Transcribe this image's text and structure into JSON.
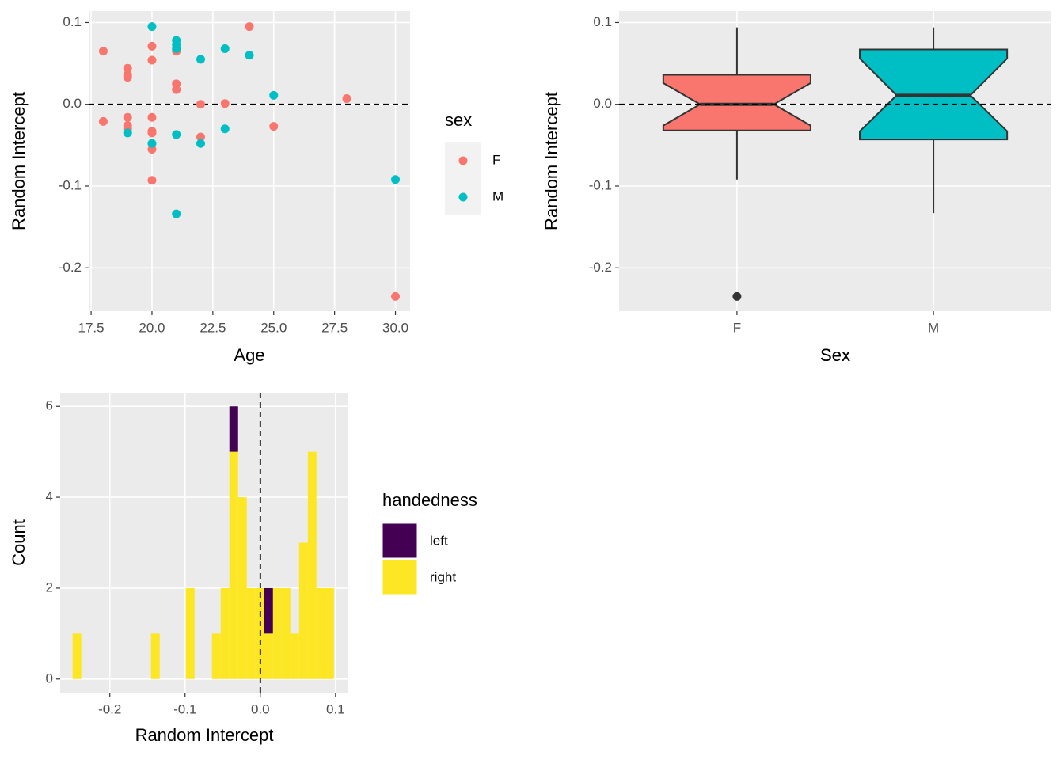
{
  "chart_data": [
    {
      "type": "scatter",
      "xlabel": "Age",
      "ylabel": "Random Intercept",
      "legend_title": "sex",
      "xlim": [
        17.4,
        30.6
      ],
      "ylim": [
        -0.253,
        0.114
      ],
      "xticks": [
        17.5,
        {
          "value": 20,
          "label": "20.0"
        },
        22.5,
        {
          "value": 25,
          "label": "25.0"
        },
        27.5,
        {
          "value": 30,
          "label": "30.0"
        }
      ],
      "yticks": [
        -0.2,
        -0.1,
        {
          "value": 0,
          "label": "0.0"
        },
        0.1
      ],
      "hline": 0,
      "grid": true,
      "series": [
        {
          "name": "F",
          "color": "#F8766D",
          "x": [
            18,
            18,
            19,
            19,
            19,
            19,
            19,
            19,
            20,
            20,
            20,
            20,
            20,
            20,
            20,
            21,
            21,
            21,
            22,
            22,
            23,
            24,
            25,
            28,
            30
          ],
          "values": [
            0.065,
            -0.021,
            0.044,
            0.036,
            0.033,
            -0.016,
            -0.026,
            -0.03,
            0.071,
            0.054,
            -0.016,
            -0.033,
            -0.035,
            -0.055,
            -0.093,
            0.065,
            0.025,
            0.018,
            0.0,
            -0.04,
            0.001,
            0.095,
            -0.027,
            0.007,
            -0.235
          ]
        },
        {
          "name": "M",
          "color": "#00BFC4",
          "x": [
            19,
            20,
            20,
            21,
            21,
            21,
            21,
            21,
            22,
            22,
            23,
            23,
            24,
            25,
            30
          ],
          "values": [
            -0.035,
            0.095,
            -0.048,
            0.078,
            0.073,
            0.068,
            -0.037,
            -0.134,
            0.055,
            -0.048,
            0.068,
            -0.03,
            0.06,
            0.011,
            -0.092
          ]
        }
      ]
    },
    {
      "type": "box",
      "xlabel": "Sex",
      "ylabel": "Random Intercept",
      "ylim": [
        -0.253,
        0.114
      ],
      "yticks": [
        -0.2,
        -0.1,
        {
          "value": 0,
          "label": "0.0"
        },
        0.1
      ],
      "hline": 0,
      "grid": true,
      "boxes": [
        {
          "name": "F",
          "color": "#F8766D",
          "low": -0.092,
          "q1": -0.032,
          "median": 0.0,
          "q3": 0.036,
          "high": 0.094,
          "notch_low": -0.026,
          "notch_high": 0.026,
          "outliers": [
            -0.235
          ]
        },
        {
          "name": "M",
          "color": "#00BFC4",
          "low": -0.133,
          "q1": -0.043,
          "median": 0.011,
          "q3": 0.067,
          "high": 0.094,
          "notch_low": -0.033,
          "notch_high": 0.056,
          "outliers": []
        }
      ]
    },
    {
      "type": "histogram",
      "xlabel": "Random Intercept",
      "ylabel": "Count",
      "legend_title": "handedness",
      "xlim": [
        -0.266,
        0.117
      ],
      "ylim": [
        -0.3,
        6.3
      ],
      "xticks": [
        -0.2,
        -0.1,
        {
          "value": 0,
          "label": "0.0"
        },
        0.1
      ],
      "yticks": [
        0,
        2,
        4,
        6
      ],
      "vline": 0,
      "grid": true,
      "bins": [
        -0.2495,
        -0.2379,
        -0.2263,
        -0.2148,
        -0.2032,
        -0.1916,
        -0.18,
        -0.1684,
        -0.1569,
        -0.1453,
        -0.1337,
        -0.1221,
        -0.1105,
        -0.099,
        -0.0874,
        -0.0758,
        -0.0642,
        -0.0526,
        -0.0411,
        -0.0295,
        -0.0179,
        -0.0063,
        0.0053,
        0.0168,
        0.0284,
        0.04,
        0.0516,
        0.0632,
        0.0747,
        0.0863,
        0.0979
      ],
      "series": [
        {
          "name": "left",
          "color": "#440154",
          "values": [
            0,
            0,
            0,
            0,
            0,
            0,
            0,
            0,
            0,
            0,
            0,
            0,
            0,
            0,
            0,
            0,
            0,
            0,
            1,
            0,
            0,
            0,
            1,
            0,
            0,
            0,
            0,
            0,
            0,
            0
          ]
        },
        {
          "name": "right",
          "color": "#FDE725",
          "values": [
            1,
            0,
            0,
            0,
            0,
            0,
            0,
            0,
            0,
            1,
            0,
            0,
            0,
            2,
            0,
            0,
            1,
            2,
            5,
            4,
            2,
            2,
            1,
            2,
            2,
            1,
            3,
            5,
            2,
            2
          ]
        }
      ]
    }
  ]
}
